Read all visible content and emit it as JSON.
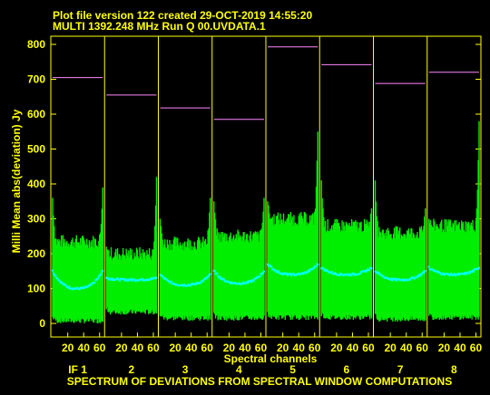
{
  "header": {
    "line1": "Plot file version 122  created 29-OCT-2019 14:55:20",
    "line2": "MULTI 1392.248 MHz  Run Q 00.UVDATA.1"
  },
  "footer": {
    "caption": "SPECTRUM OF DEVIATIONS FROM SPECTRAL WINDOW COMPUTATIONS"
  },
  "colors": {
    "background": "#000000",
    "text": "#ffff00",
    "axes": "#ffff00",
    "range_bars": "#00ee00",
    "mean_points": "#00ffff",
    "level_lines": "#ff88ff"
  },
  "chart_data": {
    "type": "line",
    "xlabel": "Spectral channels",
    "ylabel": "Milli Mean abs(deviation) Jy",
    "ylim": [
      -20,
      840
    ],
    "yticks": [
      0,
      100,
      200,
      300,
      400,
      500,
      600,
      700,
      800
    ],
    "panel_xlim": [
      1,
      64
    ],
    "xticks": [
      20,
      40,
      60
    ],
    "panels": [
      {
        "label": "IF 1",
        "level": 705,
        "mean_edge": 150,
        "mean_mid": 100,
        "upper_mid": 235,
        "lower_mid": 0,
        "spike_left": 360,
        "spike_right": 390
      },
      {
        "label": "2",
        "level": 655,
        "mean_edge": 130,
        "mean_mid": 125,
        "upper_mid": 200,
        "lower_mid": 25,
        "spike_left": 220,
        "spike_right": 420
      },
      {
        "label": "3",
        "level": 618,
        "mean_edge": 140,
        "mean_mid": 110,
        "upper_mid": 230,
        "lower_mid": 8,
        "spike_left": 300,
        "spike_right": 360
      },
      {
        "label": "4",
        "level": 585,
        "mean_edge": 150,
        "mean_mid": 115,
        "upper_mid": 250,
        "lower_mid": 8,
        "spike_left": 350,
        "spike_right": 360
      },
      {
        "label": "5",
        "level": 793,
        "mean_edge": 170,
        "mean_mid": 140,
        "upper_mid": 300,
        "lower_mid": 10,
        "spike_left": 350,
        "spike_right": 550
      },
      {
        "label": "6",
        "level": 742,
        "mean_edge": 160,
        "mean_mid": 140,
        "upper_mid": 280,
        "lower_mid": 10,
        "spike_left": 410,
        "spike_right": 330
      },
      {
        "label": "7",
        "level": 688,
        "mean_edge": 150,
        "mean_mid": 125,
        "upper_mid": 260,
        "lower_mid": 5,
        "spike_left": 410,
        "spike_right": 330
      },
      {
        "label": "8",
        "level": 720,
        "mean_edge": 160,
        "mean_mid": 140,
        "upper_mid": 280,
        "lower_mid": 10,
        "spike_left": 300,
        "spike_right": 580
      }
    ]
  }
}
